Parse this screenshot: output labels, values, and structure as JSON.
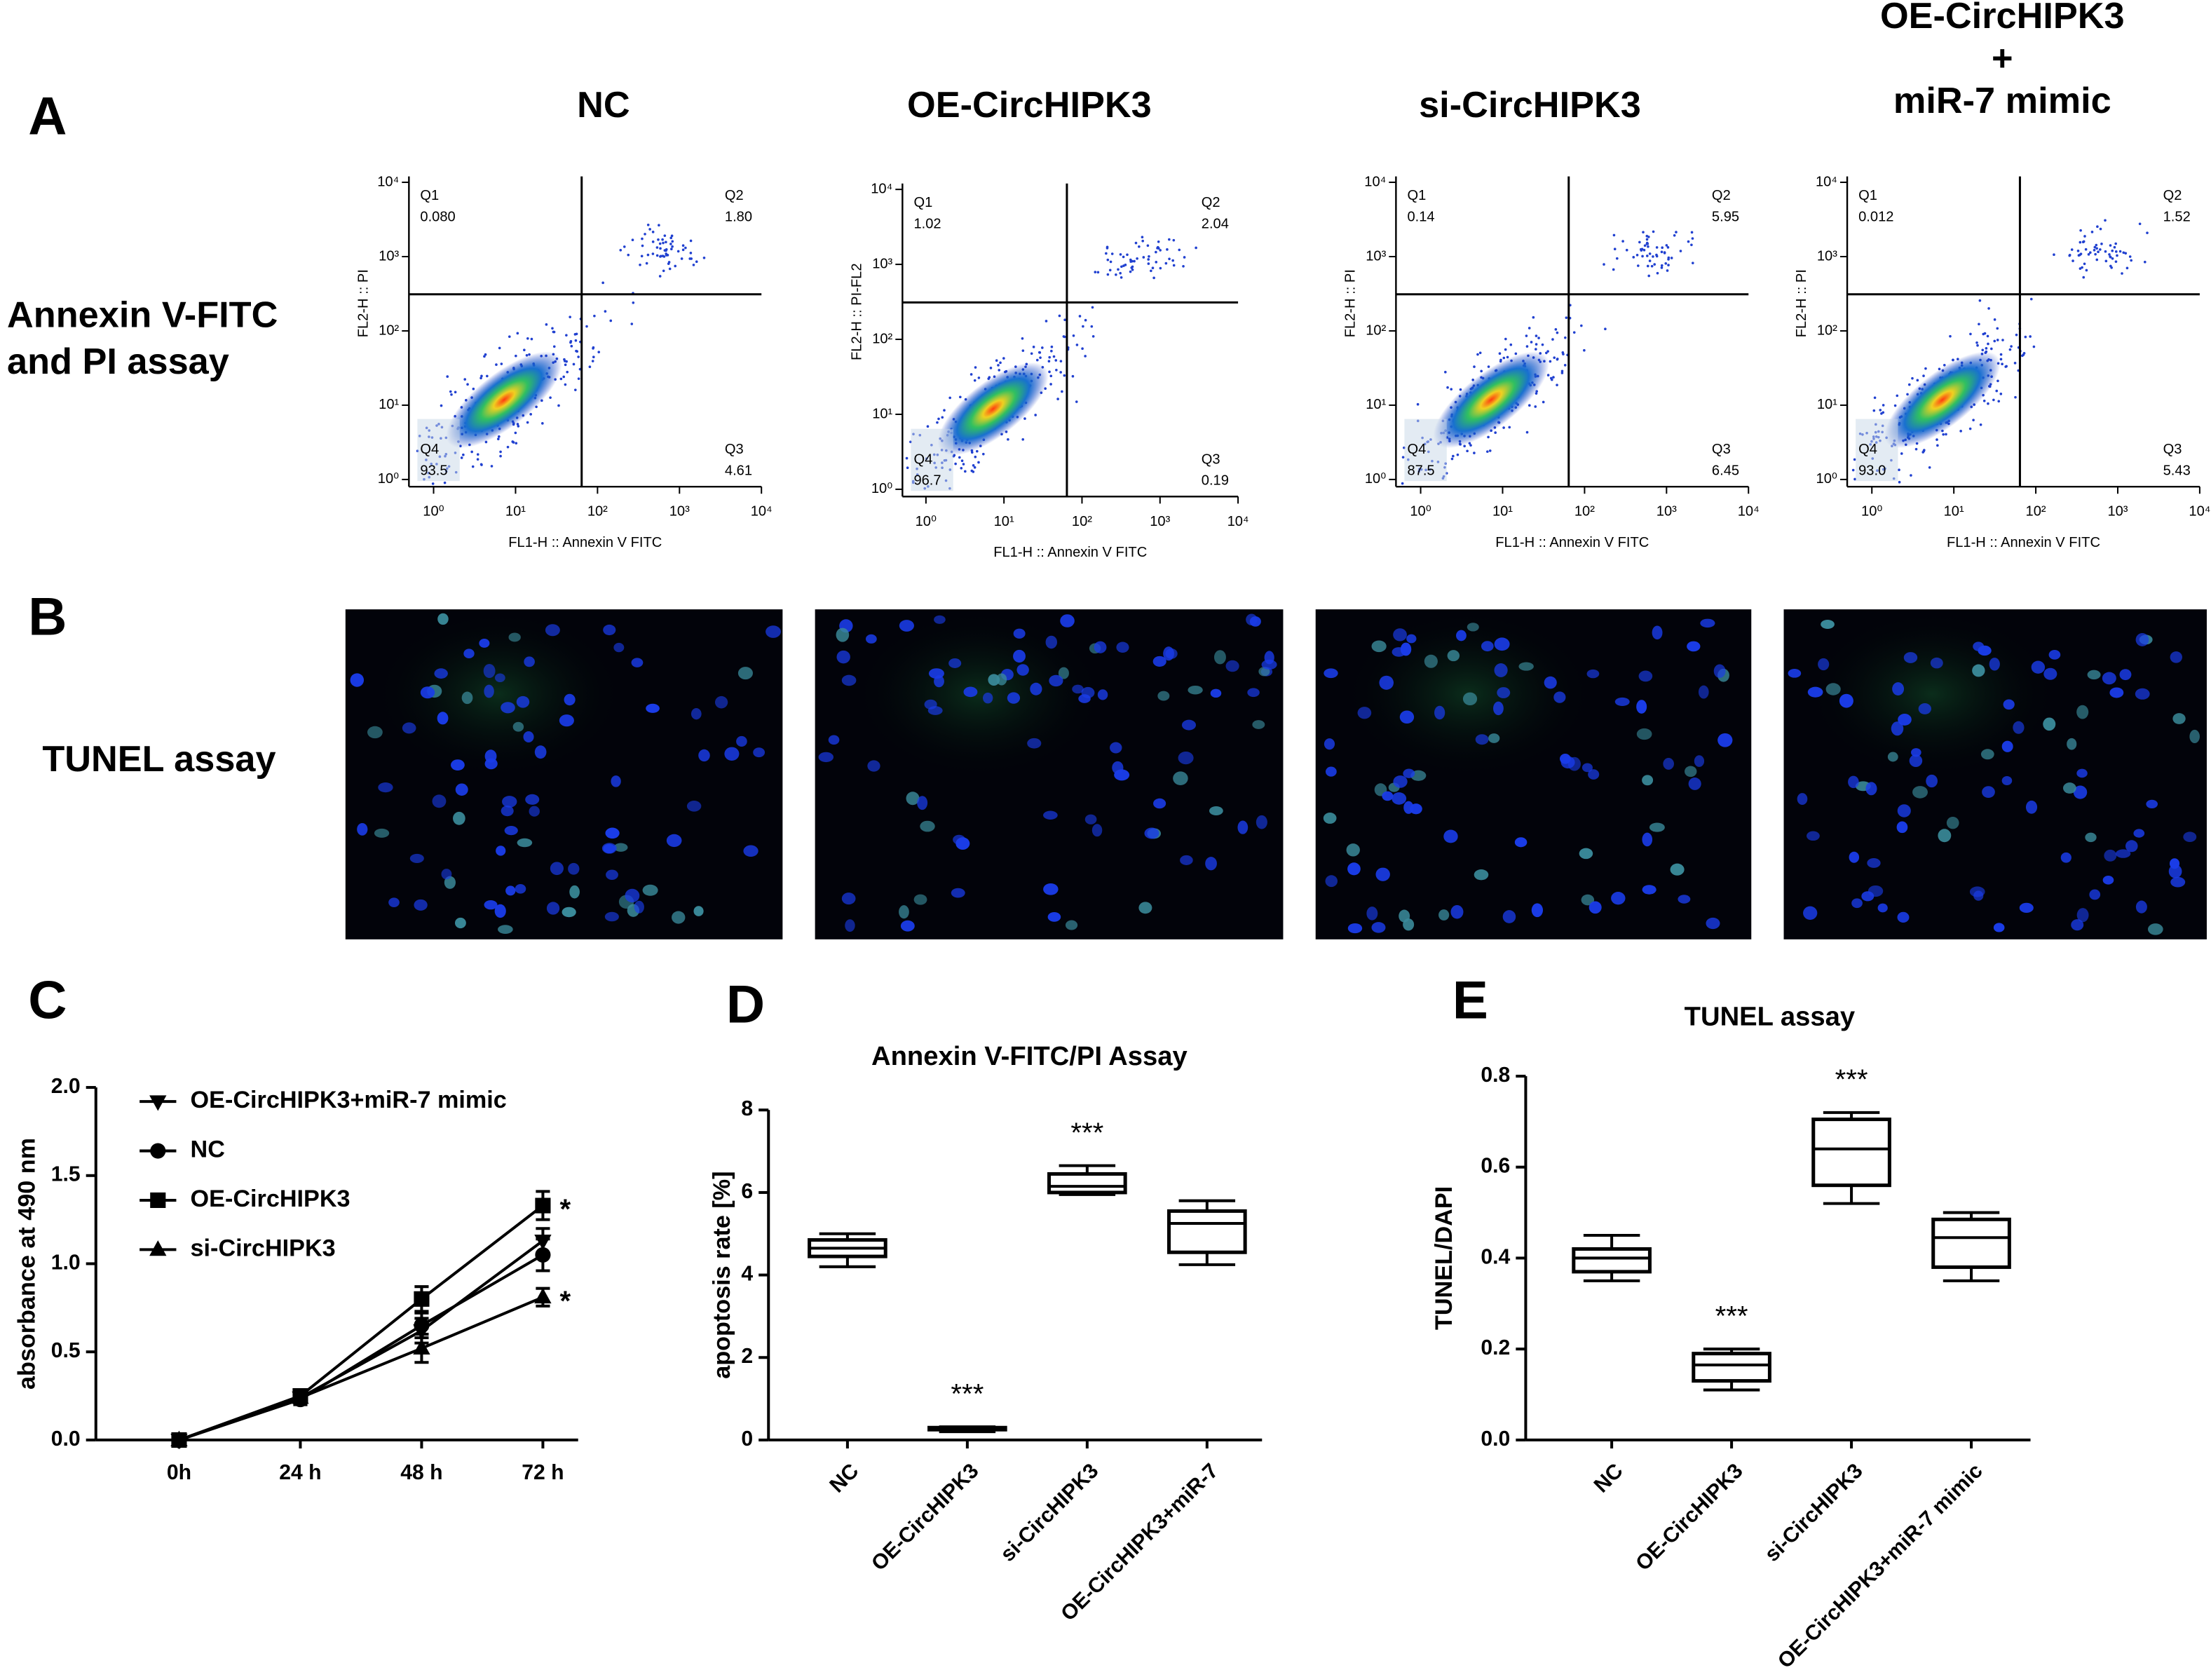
{
  "chart_data": [
    {
      "type": "flow",
      "panel": "A",
      "row_label": [
        "Annexin V-FITC",
        "and PI assay"
      ],
      "xlabel": "FL1-H :: Annexin V FITC",
      "log_scale": true,
      "xlim": [
        0.5,
        10000
      ],
      "ylim": [
        0.8,
        12000
      ],
      "xticks": [
        {
          "value": 1,
          "label": "10⁰"
        },
        {
          "value": 10,
          "label": "10¹"
        },
        {
          "value": 100,
          "label": "10²"
        },
        {
          "value": 1000,
          "label": "10³"
        },
        {
          "value": 10000,
          "label": "10⁴"
        }
      ],
      "yticks": [
        {
          "value": 1,
          "label": "10⁰"
        },
        {
          "value": 10,
          "label": "10¹"
        },
        {
          "value": 100,
          "label": "10²"
        },
        {
          "value": 1000,
          "label": "10³"
        },
        {
          "value": 10000,
          "label": "10⁴"
        }
      ],
      "quadrants": [
        "Q1",
        "Q2",
        "Q3",
        "Q4"
      ],
      "plots": [
        {
          "title": [
            "NC"
          ],
          "ylabel": "FL2-H :: PI",
          "values": [
            0.08,
            1.8,
            4.61,
            93.5
          ],
          "value_labels": [
            "0.080",
            "1.80",
            "4.61",
            "93.5"
          ]
        },
        {
          "title": [
            "OE-CircHIPK3"
          ],
          "ylabel": "FL2-H :: PI-FL2",
          "values": [
            1.02,
            2.04,
            0.19,
            96.7
          ],
          "value_labels": [
            "1.02",
            "2.04",
            "0.19",
            "96.7"
          ]
        },
        {
          "title": [
            "si-CircHIPK3"
          ],
          "ylabel": "FL2-H :: PI",
          "values": [
            0.14,
            5.95,
            6.45,
            87.5
          ],
          "value_labels": [
            "0.14",
            "5.95",
            "6.45",
            "87.5"
          ]
        },
        {
          "title": [
            "OE-CircHIPK3",
            "+",
            "miR-7 mimic"
          ],
          "ylabel": "FL2-H :: PI",
          "values": [
            0.012,
            1.52,
            5.43,
            93.0
          ],
          "value_labels": [
            "0.012",
            "1.52",
            "5.43",
            "93.0"
          ]
        }
      ]
    },
    {
      "type": "images",
      "panel": "B",
      "row_label": "TUNEL assay"
    },
    {
      "type": "line",
      "panel": "C",
      "ylabel": "absorbance at 490 nm",
      "categories": [
        "0h",
        "24 h",
        "48 h",
        "72 h"
      ],
      "ylim": [
        0,
        2
      ],
      "yticks": [
        {
          "value": 0,
          "label": "0.0"
        },
        0.5,
        {
          "value": 1,
          "label": "1.0"
        },
        1.5,
        {
          "value": 2,
          "label": "2.0"
        }
      ],
      "legend": "upper left",
      "series": [
        {
          "name": "OE-CircHIPK3+miR-7 mimic",
          "color": "#000000",
          "marker": "triangle-down",
          "values": [
            0,
            0.24,
            0.62,
            1.13
          ],
          "errors": [
            0.02,
            0.03,
            0.07,
            0.07
          ]
        },
        {
          "name": "NC",
          "color": "#000000",
          "marker": "circle",
          "values": [
            0,
            0.23,
            0.65,
            1.05
          ],
          "errors": [
            0.02,
            0.03,
            0.07,
            0.09
          ]
        },
        {
          "name": "OE-CircHIPK3",
          "color": "#000000",
          "marker": "square",
          "values": [
            0,
            0.25,
            0.8,
            1.33
          ],
          "errors": [
            0.02,
            0.03,
            0.07,
            0.08
          ],
          "point_labels": [
            null,
            null,
            null,
            "*"
          ]
        },
        {
          "name": "si-CircHIPK3",
          "color": "#000000",
          "marker": "triangle-up",
          "values": [
            0,
            0.24,
            0.52,
            0.81
          ],
          "errors": [
            0.02,
            0.03,
            0.08,
            0.05
          ],
          "point_labels": [
            null,
            null,
            null,
            "*"
          ]
        }
      ]
    },
    {
      "type": "box",
      "panel": "D",
      "title": "Annexin V-FITC/PI Assay",
      "ylabel": "apoptosis rate [%]",
      "categories": [
        "NC",
        "OE-CircHIPK3",
        "si-CircHIPK3",
        "OE-CircHIPK3+miR-7"
      ],
      "ylim": [
        0,
        8
      ],
      "yticks": [
        0,
        2,
        4,
        6,
        8
      ],
      "color": "#000000",
      "boxes": [
        {
          "min": 4.2,
          "q1": 4.45,
          "median": 4.65,
          "q3": 4.85,
          "max": 5.0
        },
        {
          "min": 0.2,
          "q1": 0.25,
          "median": 0.28,
          "q3": 0.3,
          "max": 0.32
        },
        {
          "min": 5.95,
          "q1": 6.0,
          "median": 6.15,
          "q3": 6.45,
          "max": 6.65
        },
        {
          "min": 4.25,
          "q1": 4.55,
          "median": 5.25,
          "q3": 5.55,
          "max": 5.8
        }
      ],
      "significance": [
        null,
        "***",
        "***",
        null
      ]
    },
    {
      "type": "box",
      "panel": "E",
      "title": "TUNEL assay",
      "ylabel": "TUNEL/DAPI",
      "categories": [
        "NC",
        "OE-CircHIPK3",
        "si-CircHIPK3",
        "OE-CircHIPK3+miR-7 mimic"
      ],
      "ylim": [
        0,
        0.8
      ],
      "yticks": [
        {
          "value": 0,
          "label": "0.0"
        },
        0.2,
        0.4,
        0.6,
        0.8
      ],
      "color": "#000000",
      "boxes": [
        {
          "min": 0.35,
          "q1": 0.37,
          "median": 0.4,
          "q3": 0.42,
          "max": 0.45
        },
        {
          "min": 0.11,
          "q1": 0.13,
          "median": 0.165,
          "q3": 0.19,
          "max": 0.2
        },
        {
          "min": 0.52,
          "q1": 0.56,
          "median": 0.64,
          "q3": 0.705,
          "max": 0.72
        },
        {
          "min": 0.35,
          "q1": 0.38,
          "median": 0.445,
          "q3": 0.485,
          "max": 0.5
        }
      ],
      "significance": [
        null,
        "***",
        "***",
        null
      ]
    }
  ]
}
